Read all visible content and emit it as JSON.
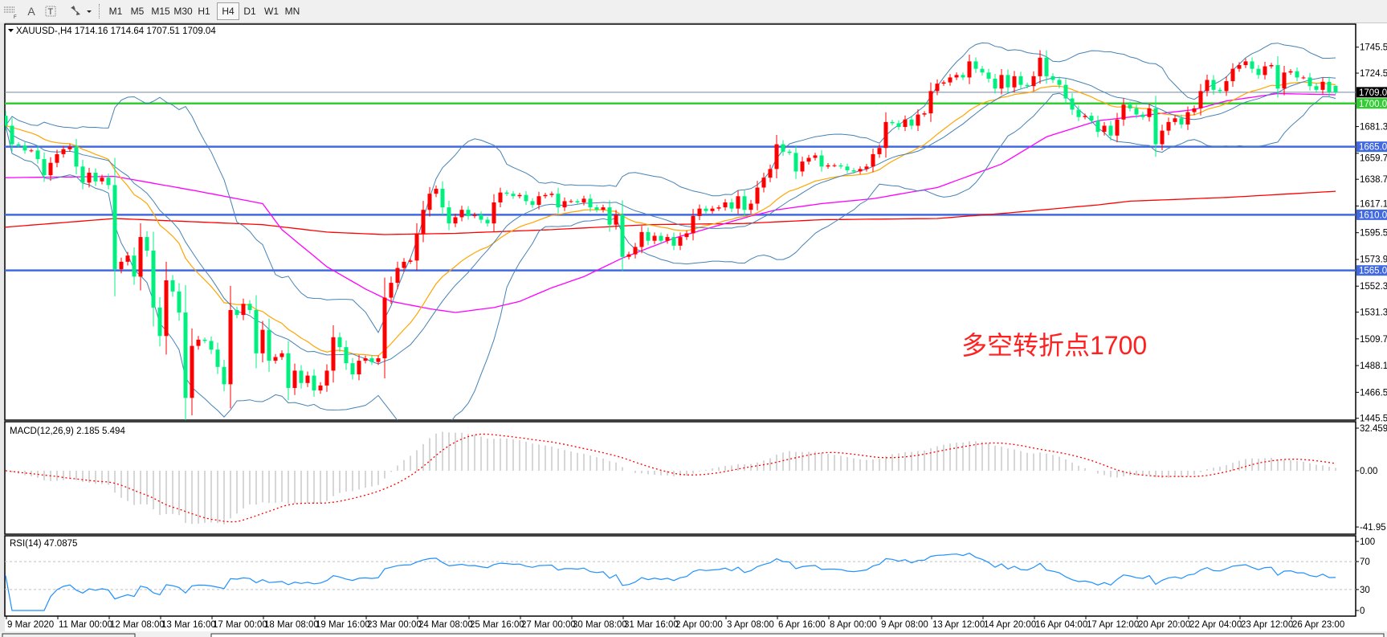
{
  "toolbar": {
    "tools": [
      {
        "name": "period-separator-icon",
        "label": ""
      },
      {
        "name": "text-tool-icon",
        "label": "A"
      },
      {
        "name": "text-label-tool-icon",
        "label": "T"
      },
      {
        "name": "arrows-tool-icon",
        "label": ""
      }
    ],
    "timeframes": [
      "M1",
      "M5",
      "M15",
      "M30",
      "H1",
      "H4",
      "D1",
      "W1",
      "MN"
    ],
    "active_timeframe": "H4"
  },
  "chart": {
    "header": "XAUUSD-,H4  1714.16 1714.64 1707.51 1709.04",
    "annotation": "多空转折点1700",
    "macd_header": "MACD(12,26,9) 2.185 5.494",
    "rsi_header": "RSI(14) 47.0875",
    "colors": {
      "bull": "#ff0000",
      "bear": "#00f080",
      "bands": "#4682b4",
      "fast_ma": "#ffa500",
      "mid_ma": "#ff00ff",
      "slow_ma": "#ff0000",
      "support": "#4169e1",
      "pivot": "#32cd32",
      "price_line": "#778899",
      "macd_hist": "#c0c0c0",
      "macd_signal": "#ff0000",
      "rsi": "#1e90ff"
    }
  },
  "chart_data": {
    "type": "candlestick",
    "symbol": "XAUUSD-",
    "timeframe": "H4",
    "last_bar": {
      "open": 1714.16,
      "high": 1714.64,
      "low": 1707.51,
      "close": 1709.04
    },
    "price_axis": {
      "ticks": [
        "1745.50",
        "1724.50",
        "1681.30",
        "1659.70",
        "1638.70",
        "1617.10",
        "1595.50",
        "1573.90",
        "1552.30",
        "1531.30",
        "1509.70",
        "1488.10",
        "1466.50",
        "1445.50"
      ],
      "range": [
        1445.5,
        1745.5
      ]
    },
    "time_labels": [
      "9 Mar 2020",
      "11 Mar 00:00",
      "12 Mar 08:00",
      "13 Mar 16:00",
      "17 Mar 00:00",
      "18 Mar 08:00",
      "19 Mar 16:00",
      "23 Mar 00:00",
      "24 Mar 08:00",
      "25 Mar 16:00",
      "27 Mar 00:00",
      "30 Mar 08:00",
      "31 Mar 16:00",
      "2 Apr 00:00",
      "3 Apr 08:00",
      "6 Apr 16:00",
      "8 Apr 00:00",
      "9 Apr 08:00",
      "13 Apr 12:00",
      "14 Apr 20:00",
      "16 Apr 04:00",
      "17 Apr 12:00",
      "20 Apr 20:00",
      "22 Apr 04:00",
      "23 Apr 12:00",
      "26 Apr 23:00"
    ],
    "bars_per_time_label": 8,
    "close": [
      1682,
      1667,
      1666,
      1662,
      1662,
      1655,
      1642,
      1652,
      1659,
      1663,
      1665,
      1649,
      1636,
      1644,
      1637,
      1640,
      1634,
      1566,
      1572,
      1577,
      1560,
      1592,
      1581,
      1535,
      1512,
      1557,
      1548,
      1531,
      1462,
      1504,
      1509,
      1508,
      1501,
      1487,
      1473,
      1533,
      1529,
      1538,
      1533,
      1498,
      1517,
      1492,
      1495,
      1498,
      1470,
      1484,
      1474,
      1480,
      1468,
      1472,
      1484,
      1511,
      1503,
      1490,
      1481,
      1492,
      1494,
      1491,
      1494,
      1543,
      1555,
      1567,
      1572,
      1573,
      1595,
      1614,
      1627,
      1631,
      1616,
      1603,
      1608,
      1614,
      1609,
      1610,
      1606,
      1603,
      1620,
      1628,
      1627,
      1625,
      1626,
      1621,
      1618,
      1625,
      1626,
      1627,
      1616,
      1621,
      1621,
      1620,
      1623,
      1616,
      1614,
      1616,
      1602,
      1610,
      1576,
      1578,
      1584,
      1596,
      1589,
      1593,
      1589,
      1592,
      1585,
      1592,
      1595,
      1609,
      1615,
      1613,
      1615,
      1616,
      1620,
      1615,
      1625,
      1614,
      1619,
      1632,
      1640,
      1647,
      1667,
      1661,
      1660,
      1645,
      1653,
      1656,
      1658,
      1649,
      1650,
      1650,
      1649,
      1646,
      1645,
      1647,
      1649,
      1659,
      1664,
      1685,
      1684,
      1681,
      1687,
      1682,
      1691,
      1692,
      1710,
      1716,
      1717,
      1721,
      1723,
      1721,
      1734,
      1728,
      1725,
      1720,
      1712,
      1723,
      1713,
      1722,
      1715,
      1714,
      1722,
      1737,
      1722,
      1719,
      1715,
      1704,
      1695,
      1689,
      1690,
      1686,
      1677,
      1682,
      1674,
      1687,
      1699,
      1696,
      1691,
      1689,
      1696,
      1667,
      1678,
      1685,
      1688,
      1683,
      1693,
      1696,
      1710,
      1719,
      1711,
      1710,
      1718,
      1728,
      1731,
      1734,
      1728,
      1723,
      1730,
      1731,
      1712,
      1725,
      1726,
      1721,
      1721,
      1714,
      1711,
      1717.5,
      1709,
      1709.04
    ],
    "mid_ma_points": [
      [
        0,
        1640
      ],
      [
        17,
        1641
      ],
      [
        30,
        1629
      ],
      [
        40,
        1619
      ],
      [
        43,
        1598
      ],
      [
        50,
        1568
      ],
      [
        56,
        1550
      ],
      [
        60,
        1540
      ],
      [
        66,
        1534
      ],
      [
        70,
        1531
      ],
      [
        76,
        1535
      ],
      [
        80,
        1540
      ],
      [
        85,
        1551
      ],
      [
        90,
        1560
      ],
      [
        96,
        1575
      ],
      [
        104,
        1591
      ],
      [
        110,
        1600
      ],
      [
        116,
        1609
      ],
      [
        120,
        1614
      ],
      [
        127,
        1619
      ],
      [
        135,
        1623
      ],
      [
        145,
        1632
      ],
      [
        155,
        1651
      ],
      [
        162,
        1673
      ],
      [
        170,
        1686
      ],
      [
        175,
        1689
      ],
      [
        185,
        1695
      ],
      [
        190,
        1702
      ],
      [
        198,
        1708
      ],
      [
        207,
        1707
      ]
    ],
    "slow_ma_points": [
      [
        0,
        1600
      ],
      [
        17,
        1607
      ],
      [
        40,
        1602
      ],
      [
        50,
        1596
      ],
      [
        59,
        1594
      ],
      [
        70,
        1595
      ],
      [
        85,
        1598
      ],
      [
        100,
        1602
      ],
      [
        115,
        1603
      ],
      [
        127,
        1606
      ],
      [
        145,
        1607
      ],
      [
        155,
        1611
      ],
      [
        170,
        1618
      ],
      [
        175,
        1621
      ],
      [
        190,
        1624
      ],
      [
        207,
        1629
      ]
    ],
    "horizontal_levels": [
      {
        "label": "1700.00",
        "value": 1700,
        "kind": "pivot"
      },
      {
        "label": "1665.00",
        "value": 1665,
        "kind": "support"
      },
      {
        "label": "1610.00",
        "value": 1610,
        "kind": "support"
      },
      {
        "label": "1565.00",
        "value": 1565,
        "kind": "support"
      }
    ],
    "current_price_label": "1709.04",
    "indicators": {
      "bollinger": {
        "period": 20,
        "deviation": 2
      },
      "macd": {
        "fast": 12,
        "slow": 26,
        "signal": 9,
        "axis_labels": [
          "32.459",
          "0.00",
          "-41.95"
        ],
        "range": [
          -41.95,
          32.459
        ]
      },
      "rsi": {
        "period": 14,
        "levels": [
          30,
          70
        ],
        "axis_labels": [
          "100",
          "70",
          "30",
          "0"
        ]
      }
    }
  }
}
